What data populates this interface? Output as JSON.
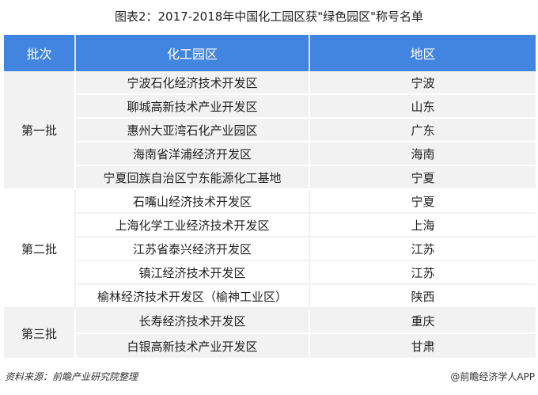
{
  "title": "图表2：2017-2018年中国化工园区获\"绿色园区\"称号名单",
  "headers": [
    "批次",
    "化工园区",
    "地区"
  ],
  "groups": [
    {
      "batch": "第一批",
      "rows": [
        [
          "宁波石化经济技术开发区",
          "宁波"
        ],
        [
          "聊城高新技术产业开发区",
          "山东"
        ],
        [
          "惠州大亚湾石化产业园区",
          "广东"
        ],
        [
          "海南省洋浦经济开发区",
          "海南"
        ],
        [
          "宁夏回族自治区宁东能源化工基地",
          "宁夏"
        ]
      ]
    },
    {
      "batch": "第二批",
      "rows": [
        [
          "石嘴山经济技术开发区",
          "宁夏"
        ],
        [
          "上海化学工业经济技术开发区",
          "上海"
        ],
        [
          "江苏省泰兴经济开发区",
          "江苏"
        ],
        [
          "镇江经济技术开发区",
          "江苏"
        ],
        [
          "榆林经济技术开发区（榆神工业区）",
          "陕西"
        ]
      ]
    },
    {
      "batch": "第三批",
      "rows": [
        [
          "长寿经济技术开发区",
          "重庆"
        ],
        [
          "白银高新技术产业开发区",
          "甘肃"
        ]
      ]
    }
  ],
  "source": "资料来源：前瞻产业研究院整理",
  "brand": "@前瞻经济学人APP",
  "colors": {
    "header": "#4285e0",
    "shaded_row": "#f2f2f2"
  }
}
